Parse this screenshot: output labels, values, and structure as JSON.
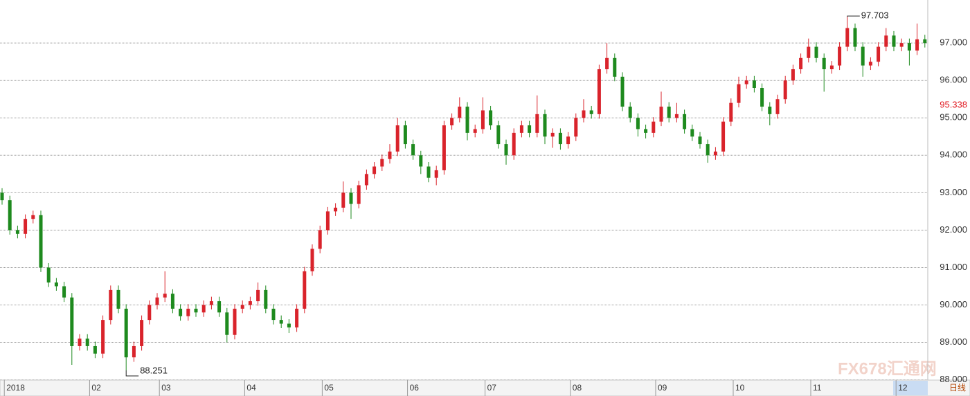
{
  "chart_data": {
    "type": "candlestick",
    "categories": [
      null,
      "2018",
      null,
      null,
      null,
      null,
      null,
      null,
      null,
      null,
      null,
      null,
      "02",
      null,
      null,
      null,
      null,
      null,
      null,
      null,
      null,
      "03",
      null,
      null,
      null,
      null,
      null,
      null,
      null,
      null,
      null,
      null,
      "04",
      null,
      null,
      null,
      null,
      null,
      null,
      null,
      null,
      null,
      "05",
      null,
      null,
      null,
      null,
      null,
      null,
      null,
      null,
      null,
      null,
      "06",
      null,
      null,
      null,
      null,
      null,
      null,
      null,
      null,
      null,
      "07",
      null,
      null,
      null,
      null,
      null,
      null,
      null,
      null,
      null,
      null,
      "08",
      null,
      null,
      null,
      null,
      null,
      null,
      null,
      null,
      null,
      null,
      "09",
      null,
      null,
      null,
      null,
      null,
      null,
      null,
      null,
      null,
      "10",
      null,
      null,
      null,
      null,
      null,
      null,
      null,
      null,
      null,
      "11",
      null,
      null,
      null,
      null,
      null,
      null,
      null,
      null,
      null,
      null,
      "12",
      null,
      null,
      null
    ],
    "open": [
      93.0,
      92.8,
      92.0,
      91.9,
      92.3,
      92.4,
      91.0,
      90.6,
      90.5,
      90.2,
      88.9,
      89.1,
      88.9,
      88.7,
      89.6,
      90.4,
      89.9,
      88.6,
      88.9,
      89.6,
      90.0,
      90.2,
      90.3,
      89.9,
      89.7,
      89.9,
      89.8,
      90.0,
      90.1,
      89.8,
      89.2,
      89.9,
      90.0,
      90.1,
      90.4,
      89.9,
      89.6,
      89.5,
      89.4,
      89.9,
      90.9,
      91.5,
      92.0,
      92.5,
      92.6,
      93.0,
      92.7,
      93.2,
      93.5,
      93.7,
      93.9,
      94.1,
      94.8,
      94.3,
      94.0,
      93.7,
      93.4,
      93.6,
      94.8,
      95.0,
      95.3,
      94.6,
      94.7,
      95.2,
      94.8,
      94.3,
      94.0,
      94.6,
      94.8,
      94.6,
      95.1,
      94.5,
      94.6,
      94.3,
      94.5,
      95.0,
      95.2,
      95.1,
      96.3,
      96.6,
      96.1,
      95.3,
      95.0,
      94.7,
      94.6,
      94.9,
      95.3,
      95.0,
      95.1,
      94.7,
      94.5,
      94.3,
      94.0,
      94.1,
      94.9,
      95.4,
      95.9,
      96.0,
      95.8,
      95.3,
      95.1,
      95.5,
      96.0,
      96.3,
      96.6,
      96.9,
      96.6,
      96.3,
      96.4,
      96.9,
      97.4,
      96.9,
      96.4,
      96.5,
      96.9,
      97.2,
      96.9,
      97.0,
      96.8,
      97.1
    ],
    "high": [
      93.12,
      92.92,
      92.12,
      92.42,
      92.52,
      92.52,
      91.12,
      90.72,
      90.62,
      90.32,
      89.22,
      89.22,
      89.02,
      89.72,
      90.52,
      90.52,
      90.02,
      89.02,
      89.72,
      90.12,
      90.32,
      90.9,
      90.42,
      90.02,
      90.02,
      90.02,
      90.12,
      90.22,
      90.22,
      89.92,
      90.02,
      90.12,
      90.22,
      90.6,
      90.52,
      90.02,
      89.72,
      89.62,
      90.02,
      91.02,
      91.62,
      92.12,
      92.62,
      92.72,
      93.3,
      93.12,
      93.32,
      93.62,
      93.82,
      94.02,
      94.3,
      95.0,
      94.92,
      94.42,
      94.12,
      93.82,
      93.72,
      94.92,
      95.12,
      95.55,
      95.42,
      94.82,
      95.55,
      95.32,
      94.92,
      94.42,
      94.72,
      94.92,
      94.92,
      95.6,
      95.22,
      94.72,
      94.72,
      94.62,
      95.12,
      95.5,
      95.32,
      96.42,
      97.0,
      96.72,
      96.22,
      95.42,
      95.12,
      94.82,
      95.02,
      95.7,
      95.42,
      95.4,
      95.22,
      94.82,
      94.62,
      94.42,
      94.22,
      95.02,
      95.52,
      96.1,
      96.12,
      96.12,
      95.92,
      95.42,
      95.62,
      96.12,
      96.42,
      96.72,
      97.12,
      97.02,
      96.72,
      96.52,
      97.02,
      97.703,
      97.52,
      97.02,
      96.62,
      97.02,
      97.4,
      97.32,
      97.12,
      97.12,
      97.52,
      97.22
    ],
    "low": [
      92.68,
      91.88,
      91.78,
      91.78,
      92.18,
      90.88,
      90.48,
      90.38,
      90.08,
      88.4,
      88.78,
      88.78,
      88.58,
      88.58,
      89.48,
      89.78,
      88.251,
      88.48,
      88.78,
      89.48,
      89.88,
      90.08,
      89.78,
      89.58,
      89.58,
      89.68,
      89.68,
      89.88,
      89.68,
      89.0,
      89.08,
      89.78,
      89.88,
      89.98,
      89.78,
      89.48,
      89.38,
      89.25,
      89.28,
      89.78,
      90.78,
      91.38,
      91.88,
      92.38,
      92.48,
      92.3,
      92.58,
      93.08,
      93.38,
      93.58,
      93.78,
      93.98,
      94.18,
      93.88,
      93.5,
      93.28,
      93.2,
      93.48,
      94.68,
      94.88,
      94.4,
      94.48,
      94.58,
      94.68,
      94.18,
      93.75,
      93.88,
      94.48,
      94.48,
      94.48,
      94.3,
      94.2,
      94.15,
      94.18,
      94.38,
      94.88,
      94.98,
      94.98,
      96.18,
      95.98,
      95.18,
      94.88,
      94.5,
      94.45,
      94.48,
      94.78,
      94.88,
      94.88,
      94.58,
      94.38,
      94.18,
      93.8,
      93.88,
      93.98,
      94.78,
      95.28,
      95.78,
      95.68,
      95.18,
      94.8,
      94.98,
      95.38,
      95.88,
      96.18,
      96.48,
      96.48,
      95.7,
      96.18,
      96.28,
      96.78,
      96.78,
      96.1,
      96.28,
      96.38,
      96.78,
      96.78,
      96.78,
      96.4,
      96.68,
      96.88
    ],
    "close": [
      92.8,
      92.0,
      91.9,
      92.3,
      92.4,
      91.0,
      90.6,
      90.5,
      90.2,
      88.9,
      89.1,
      88.9,
      88.7,
      89.6,
      90.4,
      89.9,
      88.6,
      88.9,
      89.6,
      90.0,
      90.2,
      90.3,
      89.9,
      89.7,
      89.9,
      89.8,
      90.0,
      90.1,
      89.8,
      89.2,
      89.9,
      90.0,
      90.1,
      90.4,
      89.9,
      89.6,
      89.5,
      89.4,
      89.9,
      90.9,
      91.5,
      92.0,
      92.5,
      92.6,
      93.0,
      92.7,
      93.2,
      93.5,
      93.7,
      93.9,
      94.1,
      94.8,
      94.3,
      94.0,
      93.7,
      93.4,
      93.6,
      94.8,
      95.0,
      95.3,
      94.6,
      94.7,
      95.2,
      94.8,
      94.3,
      94.0,
      94.6,
      94.8,
      94.6,
      95.1,
      94.5,
      94.6,
      94.3,
      94.5,
      95.0,
      95.2,
      95.1,
      96.3,
      96.6,
      96.1,
      95.3,
      95.0,
      94.7,
      94.6,
      94.9,
      95.3,
      95.0,
      95.1,
      94.7,
      94.5,
      94.3,
      94.0,
      94.1,
      94.9,
      95.4,
      95.9,
      96.0,
      95.8,
      95.3,
      95.1,
      95.5,
      96.0,
      96.3,
      96.6,
      96.9,
      96.6,
      96.3,
      96.4,
      96.9,
      97.4,
      96.9,
      96.4,
      96.5,
      96.9,
      97.2,
      96.9,
      97.0,
      96.8,
      97.1,
      97.0
    ],
    "up_color": "#d9232b",
    "down_color": "#1e8a1e",
    "ylim": [
      87.9,
      98.15
    ],
    "yticks": [
      {
        "value": 88,
        "label": "88.000"
      },
      {
        "value": 89,
        "label": "89.000"
      },
      {
        "value": 90,
        "label": "90.000"
      },
      {
        "value": 91,
        "label": "91.000"
      },
      {
        "value": 92,
        "label": "92.000"
      },
      {
        "value": 93,
        "label": "93.000"
      },
      {
        "value": 94,
        "label": "94.000"
      },
      {
        "value": 95,
        "label": "95.000"
      },
      {
        "value": 96,
        "label": "96.000"
      },
      {
        "value": 97,
        "label": "97.000"
      }
    ],
    "grid": true,
    "max_index": 109,
    "min_index": 16,
    "current_price": 95.338,
    "period_label": "日线",
    "watermark": "FX678汇通网"
  }
}
